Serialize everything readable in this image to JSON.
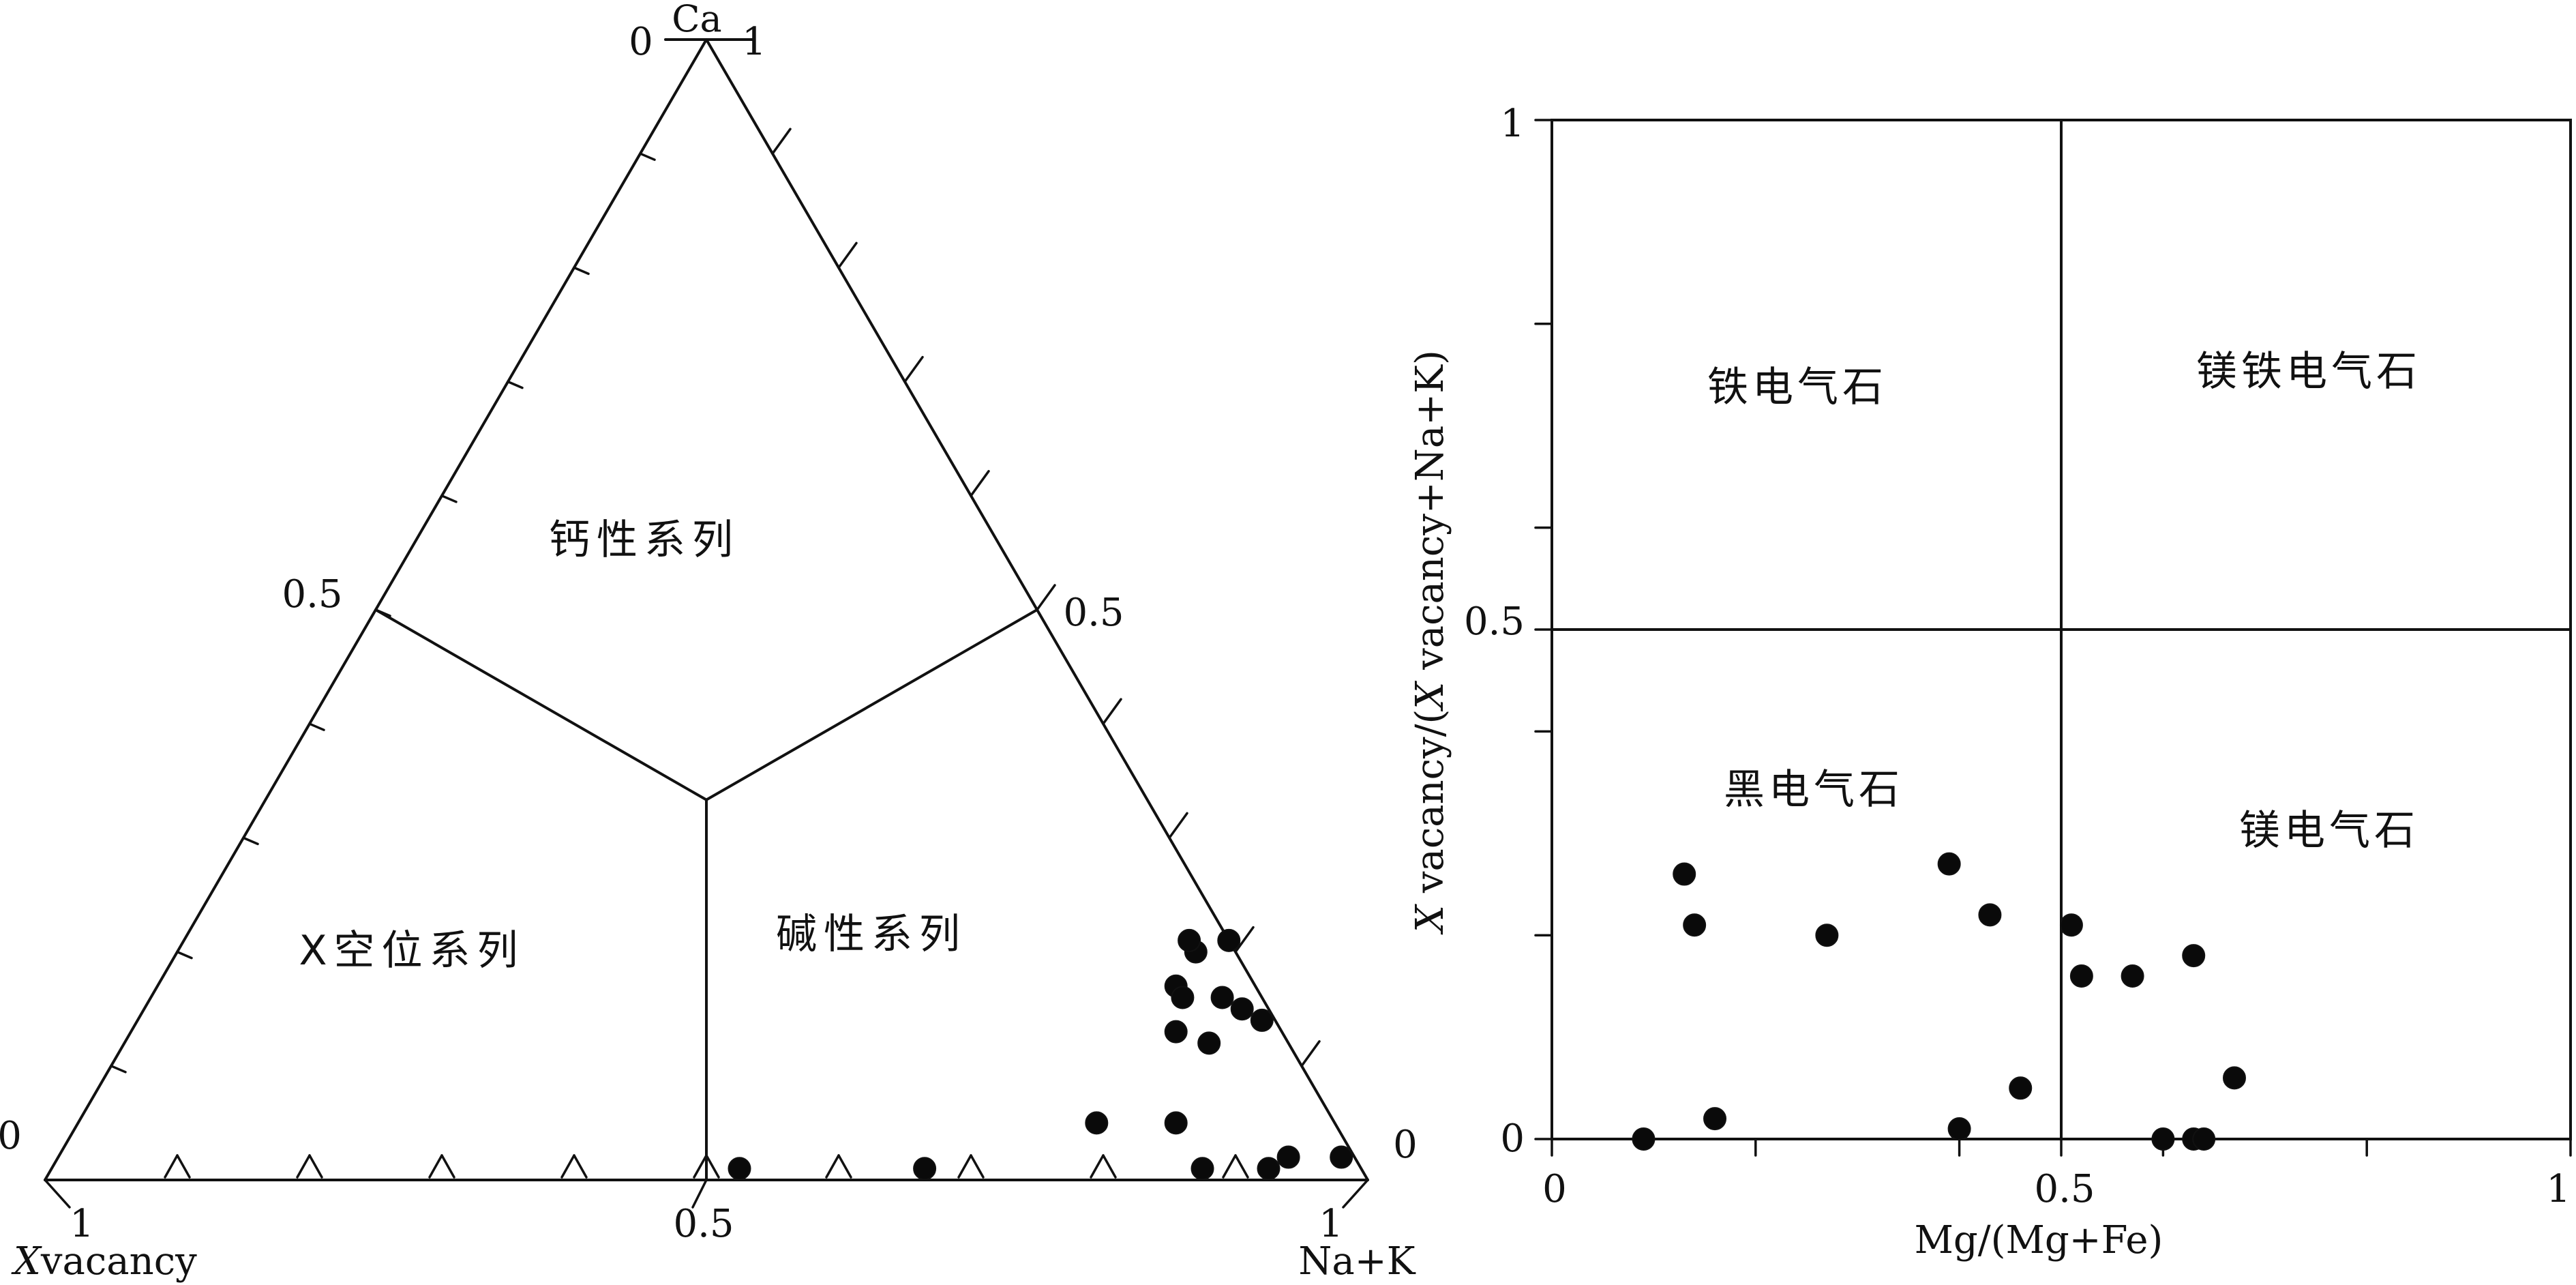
{
  "colors": {
    "ink": "#111111",
    "point_fill": "#0a0a0a",
    "background": "#ffffff"
  },
  "chart_data": [
    {
      "type": "scatter",
      "subtype": "ternary",
      "axes": {
        "top_vertex_label": "Ca",
        "bottom_left_vertex_label_italic": "X",
        "bottom_left_vertex_label_rest": "vacancy",
        "bottom_right_vertex_label": "Na+K"
      },
      "tick_labels": {
        "top_zero": "0",
        "top_one": "1",
        "left_half": "0.5",
        "right_half": "0.5",
        "left_zero": "0",
        "right_zero": "0",
        "bottom_one_left": "1",
        "bottom_half": "0.5",
        "bottom_one_right": "1"
      },
      "fields": {
        "calcic": "钙性系列",
        "vacancy": "X空位系列",
        "alkali": "碱性系列"
      },
      "points_ca_vac_alk": [
        [
          0.21,
          0.0,
          0.79
        ],
        [
          0.2,
          0.03,
          0.77
        ],
        [
          0.16,
          0.03,
          0.81
        ],
        [
          0.21,
          0.03,
          0.76
        ],
        [
          0.17,
          0.06,
          0.77
        ],
        [
          0.15,
          0.02,
          0.83
        ],
        [
          0.16,
          0.06,
          0.78
        ],
        [
          0.12,
          0.06,
          0.82
        ],
        [
          0.14,
          0.01,
          0.85
        ],
        [
          0.13,
          0.08,
          0.79
        ],
        [
          0.05,
          0.18,
          0.77
        ],
        [
          0.05,
          0.12,
          0.83
        ],
        [
          0.01,
          0.47,
          0.52
        ],
        [
          0.01,
          0.33,
          0.66
        ],
        [
          0.01,
          0.12,
          0.87
        ],
        [
          0.01,
          0.07,
          0.92
        ],
        [
          0.02,
          0.05,
          0.93
        ],
        [
          0.02,
          0.01,
          0.97
        ]
      ]
    },
    {
      "type": "scatter",
      "xlabel": "Mg/(Mg+Fe)",
      "ylabel_italic": "X",
      "ylabel_rest": " vacancy/(",
      "ylabel_italic2": "X",
      "ylabel_rest2": " vacancy+Na+K)",
      "xlim": [
        0,
        1
      ],
      "ylim": [
        0,
        1
      ],
      "xtick_labels": [
        "0",
        "0.5",
        "1"
      ],
      "ytick_labels": [
        "0",
        "0.5",
        "1"
      ],
      "quadrants": {
        "top_left": "铁电气石",
        "top_right": "镁铁电气石",
        "bottom_left": "黑电气石",
        "bottom_right": "镁电气石"
      },
      "points": [
        [
          0.09,
          0.0
        ],
        [
          0.13,
          0.26
        ],
        [
          0.14,
          0.21
        ],
        [
          0.16,
          0.02
        ],
        [
          0.27,
          0.2
        ],
        [
          0.39,
          0.27
        ],
        [
          0.4,
          0.01
        ],
        [
          0.43,
          0.22
        ],
        [
          0.46,
          0.05
        ],
        [
          0.51,
          0.21
        ],
        [
          0.52,
          0.16
        ],
        [
          0.57,
          0.16
        ],
        [
          0.6,
          0.0
        ],
        [
          0.63,
          0.0
        ],
        [
          0.64,
          0.0
        ],
        [
          0.63,
          0.18
        ],
        [
          0.67,
          0.06
        ]
      ]
    }
  ]
}
